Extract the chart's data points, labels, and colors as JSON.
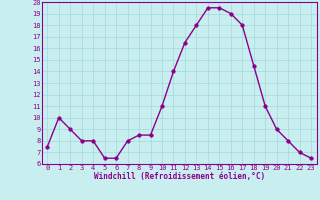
{
  "x": [
    0,
    1,
    2,
    3,
    4,
    5,
    6,
    7,
    8,
    9,
    10,
    11,
    12,
    13,
    14,
    15,
    16,
    17,
    18,
    19,
    20,
    21,
    22,
    23
  ],
  "y": [
    7.5,
    10,
    9,
    8,
    8,
    6.5,
    6.5,
    8,
    8.5,
    8.5,
    11,
    14,
    16.5,
    18,
    19.5,
    19.5,
    19,
    18,
    14.5,
    11,
    9,
    8,
    7,
    6.5
  ],
  "line_color": "#8B008B",
  "marker_color": "#8B008B",
  "bg_color": "#C8EEF0",
  "grid_color": "#A0D8DC",
  "xlabel": "Windchill (Refroidissement éolien,°C)",
  "xlabel_color": "#8B008B",
  "tick_color": "#8B008B",
  "ylim": [
    6,
    20
  ],
  "xlim": [
    -0.5,
    23.5
  ],
  "yticks": [
    6,
    7,
    8,
    9,
    10,
    11,
    12,
    13,
    14,
    15,
    16,
    17,
    18,
    19,
    20
  ],
  "xticks": [
    0,
    1,
    2,
    3,
    4,
    5,
    6,
    7,
    8,
    9,
    10,
    11,
    12,
    13,
    14,
    15,
    16,
    17,
    18,
    19,
    20,
    21,
    22,
    23
  ],
  "xtick_labels": [
    "0",
    "1",
    "2",
    "3",
    "4",
    "5",
    "6",
    "7",
    "8",
    "9",
    "10",
    "11",
    "12",
    "13",
    "14",
    "15",
    "16",
    "17",
    "18",
    "19",
    "20",
    "21",
    "22",
    "23"
  ],
  "spine_color": "#8B008B",
  "line_width": 1.0,
  "marker_size": 2.5
}
